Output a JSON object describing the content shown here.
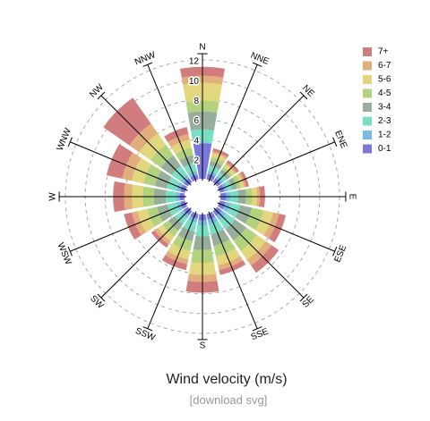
{
  "chart_data": {
    "type": "windrose",
    "title": "Wind velocity (m/s)",
    "link": "[download svg]",
    "categories": [
      "N",
      "NNE",
      "NE",
      "ENE",
      "E",
      "ESE",
      "SE",
      "SSE",
      "S",
      "SSW",
      "SW",
      "WSW",
      "W",
      "WNW",
      "NW",
      "NNW"
    ],
    "ylim": [
      0,
      12
    ],
    "yticks": [
      2,
      4,
      6,
      8,
      10,
      12
    ],
    "grid": true,
    "series": [
      {
        "name": "0-1",
        "color": "#7b78dc",
        "values": [
          3.6,
          0.6,
          0.5,
          0.5,
          0.6,
          0.6,
          0.6,
          0.6,
          0.6,
          0.5,
          0.5,
          0.5,
          0.5,
          0.5,
          0.5,
          0.5
        ]
      },
      {
        "name": "1-2",
        "color": "#78bce3",
        "values": [
          0.1,
          0.3,
          0.3,
          0.3,
          0.4,
          0.5,
          0.5,
          0.5,
          0.5,
          0.4,
          0.4,
          0.4,
          0.4,
          0.4,
          0.4,
          0.4
        ]
      },
      {
        "name": "2-3",
        "color": "#78dfc4",
        "values": [
          1.3,
          0.5,
          0.4,
          0.5,
          0.8,
          1.0,
          1.1,
          1.0,
          1.1,
          0.9,
          0.7,
          0.9,
          1.0,
          1.0,
          1.1,
          0.8
        ]
      },
      {
        "name": "3-4",
        "color": "#97ae9a",
        "values": [
          1.8,
          0.5,
          0.4,
          0.5,
          0.8,
          1.2,
          1.4,
          1.2,
          1.4,
          1.0,
          0.8,
          1.1,
          1.2,
          1.2,
          1.3,
          0.8
        ]
      },
      {
        "name": "4-5",
        "color": "#b2d27e",
        "values": [
          1.1,
          0.4,
          0.3,
          0.4,
          0.6,
          1.2,
          1.3,
          1.1,
          1.3,
          1.0,
          0.7,
          1.0,
          1.1,
          1.2,
          1.3,
          0.8
        ]
      },
      {
        "name": "5-6",
        "color": "#e2d77c",
        "values": [
          1.8,
          0.4,
          0.3,
          0.3,
          0.5,
          1.0,
          1.1,
          0.9,
          1.2,
          0.9,
          0.6,
          1.0,
          1.1,
          1.2,
          1.4,
          0.8
        ]
      },
      {
        "name": "6-7",
        "color": "#e2ae7c",
        "values": [
          0.7,
          0.2,
          0.2,
          0.2,
          0.3,
          0.6,
          0.7,
          0.5,
          0.7,
          0.5,
          0.4,
          0.6,
          0.8,
          1.0,
          1.2,
          0.6
        ]
      },
      {
        "name": "7+",
        "color": "#d27d7d",
        "values": [
          0.9,
          0.3,
          0.3,
          0.3,
          0.5,
          0.7,
          0.9,
          0.5,
          1.1,
          0.6,
          0.4,
          0.8,
          1.1,
          1.6,
          3.2,
          0.7
        ]
      }
    ]
  }
}
